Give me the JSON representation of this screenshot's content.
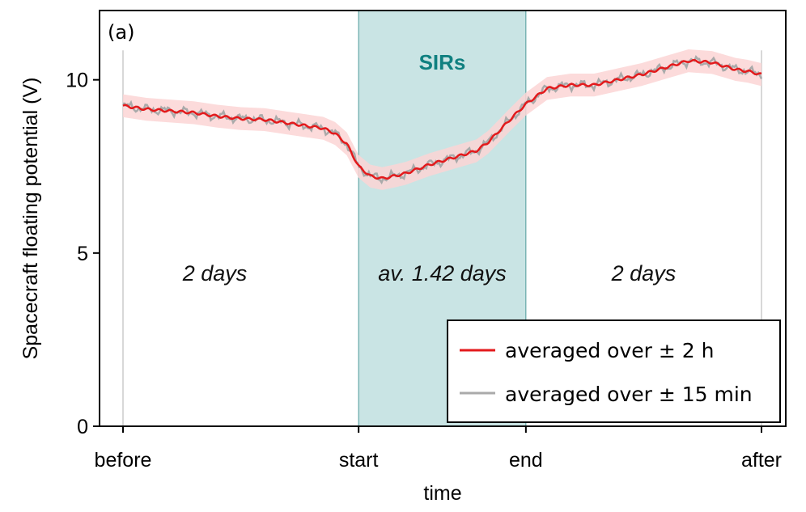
{
  "chart_data": {
    "type": "line",
    "panel_label": "(a)",
    "xlabel": "time",
    "ylabel": "Spacecraft floating potential (V)",
    "ylim": [
      0,
      12
    ],
    "y_ticks": [
      0,
      5,
      10
    ],
    "x_ticks": [
      {
        "pos": 0,
        "label": "before"
      },
      {
        "pos": 1,
        "label": "start"
      },
      {
        "pos": 1.71,
        "label": "end"
      },
      {
        "pos": 2.71,
        "label": "after"
      }
    ],
    "xlim": [
      0,
      2.71
    ],
    "shaded_region": {
      "start": 1,
      "end": 1.71,
      "label": "SIRs",
      "color": "#c9e4e4",
      "edge_color": "#4e9a9a"
    },
    "region_annotations": [
      {
        "x": 0.39,
        "text": "2 days"
      },
      {
        "x": 1.355,
        "text": "av. 1.42 days"
      },
      {
        "x": 2.21,
        "text": "2 days"
      }
    ],
    "series": [
      {
        "name": "averaged over ± 2 h",
        "color": "#e31a1c",
        "band_color": "#fcd5d5",
        "band_halfwidth": 0.33,
        "x": [
          0,
          0.1,
          0.2,
          0.3,
          0.4,
          0.5,
          0.6,
          0.7,
          0.8,
          0.85,
          0.9,
          0.95,
          1.0,
          1.05,
          1.1,
          1.15,
          1.2,
          1.3,
          1.4,
          1.5,
          1.55,
          1.6,
          1.65,
          1.71,
          1.8,
          1.9,
          2.0,
          2.1,
          2.2,
          2.3,
          2.4,
          2.5,
          2.55,
          2.6,
          2.65,
          2.71
        ],
        "values": [
          9.25,
          9.15,
          9.1,
          9.05,
          8.95,
          8.88,
          8.85,
          8.75,
          8.65,
          8.6,
          8.45,
          8.15,
          7.5,
          7.22,
          7.15,
          7.22,
          7.3,
          7.55,
          7.75,
          7.95,
          8.2,
          8.55,
          8.9,
          9.3,
          9.75,
          9.85,
          9.85,
          10.0,
          10.15,
          10.35,
          10.55,
          10.5,
          10.4,
          10.3,
          10.25,
          10.15
        ]
      },
      {
        "name": "averaged over ± 15 min",
        "color": "#aaaaaa",
        "jitter": 0.15
      }
    ],
    "legend_position": "bottom-right"
  }
}
